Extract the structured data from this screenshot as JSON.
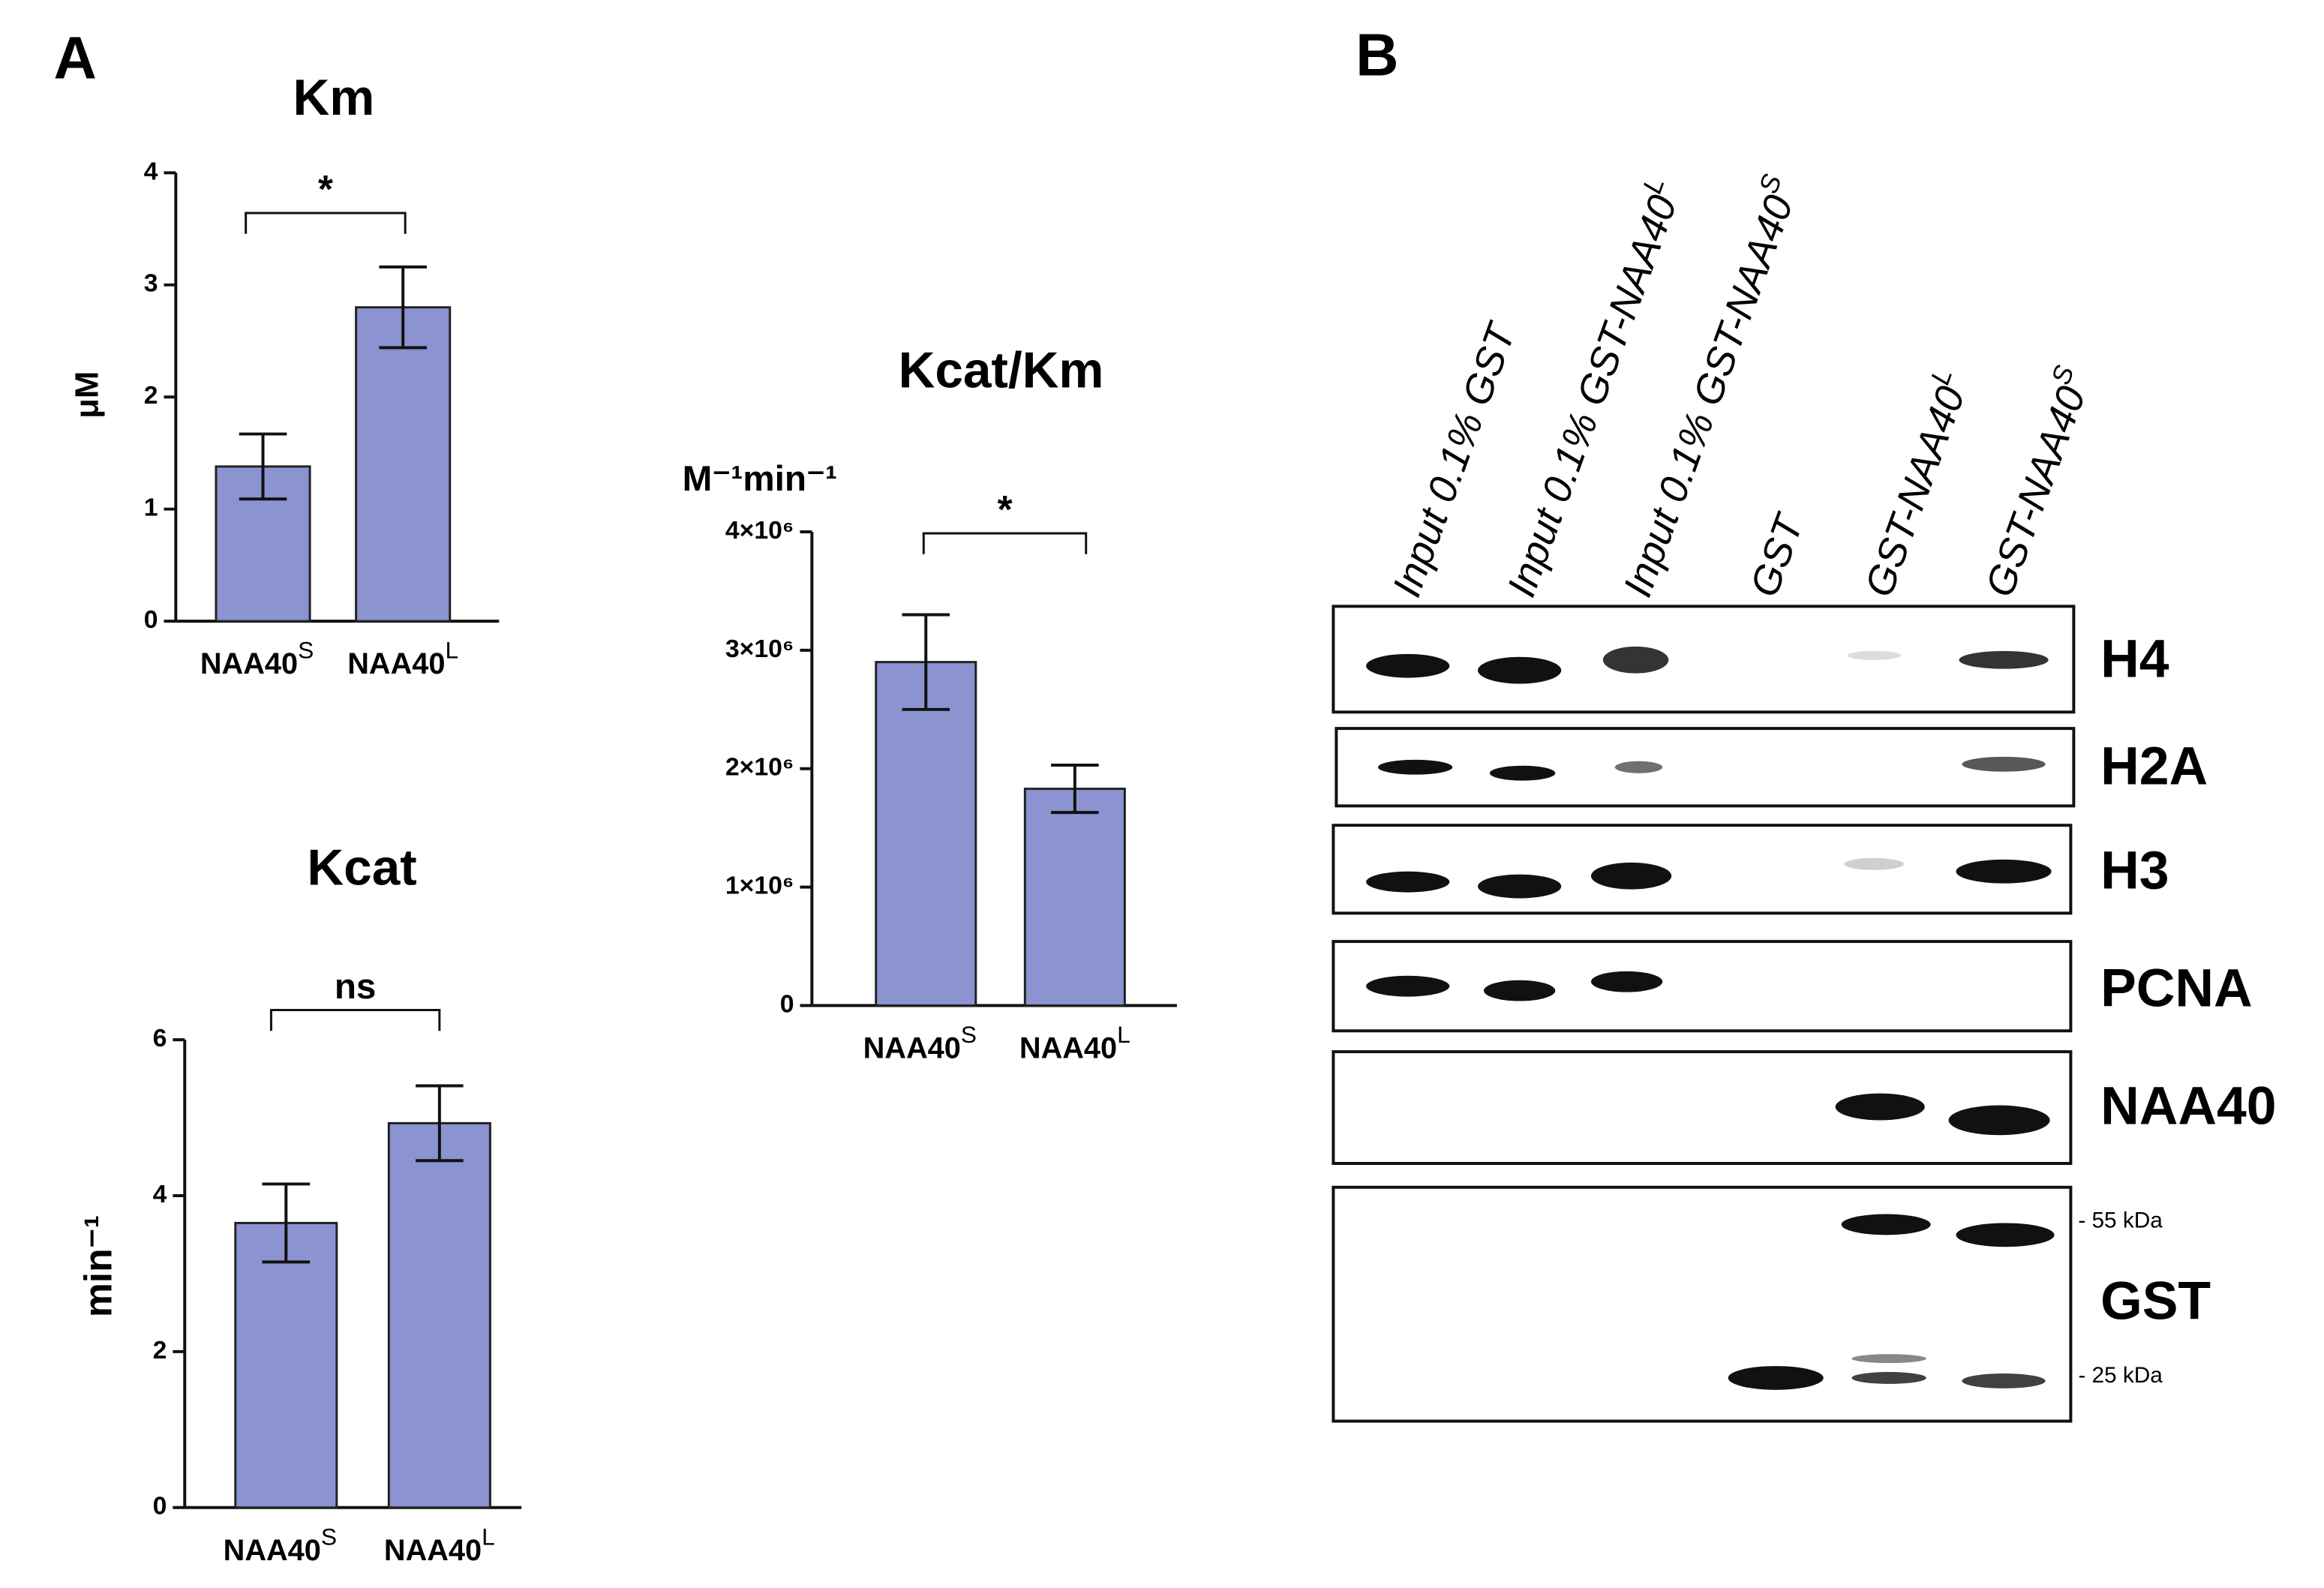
{
  "panels": [
    "A",
    "B"
  ],
  "chart_data": [
    {
      "type": "bar",
      "title": "Km",
      "ylabel": "μM",
      "categories": [
        "NAA40S",
        "NAA40L"
      ],
      "values": [
        1.38,
        2.8
      ],
      "errors": [
        0.29,
        0.36
      ],
      "color": "#8b93d1",
      "ylim": [
        0,
        4
      ],
      "yticks": [
        0,
        1,
        2,
        3,
        4
      ],
      "grid": false,
      "significance": "*"
    },
    {
      "type": "bar",
      "title": "Kcat",
      "ylabel": "min⁻¹",
      "categories": [
        "NAA40S",
        "NAA40L"
      ],
      "values": [
        3.65,
        4.93
      ],
      "errors": [
        0.5,
        0.48
      ],
      "color": "#8b93d1",
      "ylim": [
        0,
        6
      ],
      "yticks": [
        0,
        2,
        4,
        6
      ],
      "grid": false,
      "significance": "ns"
    },
    {
      "type": "bar",
      "title": "Kcat/Km",
      "ylabel": "M⁻¹min⁻¹",
      "categories": [
        "NAA40S",
        "NAA40L"
      ],
      "values": [
        2900000,
        1830000
      ],
      "errors": [
        400000,
        200000
      ],
      "color": "#8b93d1",
      "ylim": [
        0,
        4000000
      ],
      "yticks": [
        0,
        {
          "value": 1000000,
          "label": "1×10⁶"
        },
        {
          "value": 2000000,
          "label": "2×10⁶"
        },
        {
          "value": 3000000,
          "label": "3×10⁶"
        },
        {
          "value": 4000000,
          "label": "4×10⁶"
        }
      ],
      "grid": false,
      "significance": "*"
    }
  ],
  "blot": {
    "lanes": [
      "Input 0.1% GST",
      "Input 0.1% GST-NAA40L",
      "Input 0.1% GST-NAA40S",
      "GST",
      "GST-NAA40L",
      "GST-NAA40S"
    ],
    "rows": [
      "H4",
      "H2A",
      "H3",
      "PCNA",
      "NAA40",
      "GST"
    ],
    "markers": [
      "- 55 kDa",
      "- 25 kDa"
    ]
  }
}
